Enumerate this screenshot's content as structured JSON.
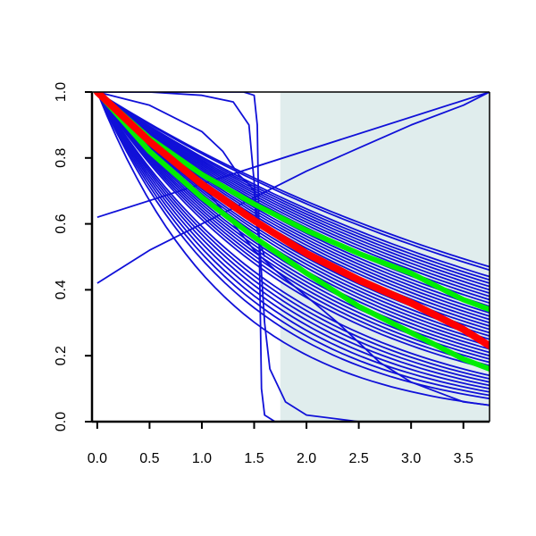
{
  "chart_data": {
    "type": "line",
    "title": "",
    "xlabel": "",
    "ylabel": "",
    "xlim": [
      -0.05,
      3.75
    ],
    "ylim": [
      0.0,
      1.0
    ],
    "x_ticks": [
      0,
      0.5,
      1,
      1.5,
      2,
      2.5,
      3,
      3.5
    ],
    "x_tick_labels": [
      "0.0",
      "0.5",
      "1.0",
      "1.5",
      "2.0",
      "2.5",
      "3.0",
      "3.5"
    ],
    "y_ticks": [
      0,
      0.2,
      0.4,
      0.6,
      0.8,
      1
    ],
    "y_tick_labels": [
      "0.0",
      "0.2",
      "0.4",
      "0.6",
      "0.8",
      "1.0"
    ],
    "grid": false,
    "legend": "none",
    "shaded_region": {
      "x_from": 1.75,
      "x_to": 3.75,
      "color": "#e0eded"
    },
    "colors": {
      "samples": "#1010d8",
      "median": "#ff0000",
      "band": "#00ee00",
      "axes": "#000000"
    },
    "exp_decay_series": {
      "count": 40,
      "x_end": 3.75,
      "final_values": [
        0.05,
        0.07,
        0.08,
        0.09,
        0.1,
        0.11,
        0.12,
        0.13,
        0.14,
        0.16,
        0.17,
        0.18,
        0.19,
        0.2,
        0.21,
        0.22,
        0.23,
        0.24,
        0.25,
        0.26,
        0.27,
        0.28,
        0.29,
        0.3,
        0.31,
        0.32,
        0.33,
        0.34,
        0.35,
        0.36,
        0.37,
        0.38,
        0.39,
        0.4,
        0.41,
        0.42,
        0.43,
        0.44,
        0.46,
        0.47
      ]
    },
    "series": [
      {
        "role": "median",
        "color": "#ff0000",
        "x": [
          0,
          0.5,
          1,
          1.5,
          2,
          2.5,
          3,
          3.5,
          3.75
        ],
        "y": [
          1.0,
          0.85,
          0.72,
          0.61,
          0.51,
          0.43,
          0.36,
          0.28,
          0.23
        ]
      },
      {
        "role": "band-upper",
        "color": "#00ee00",
        "x": [
          0,
          0.5,
          1,
          1.5,
          2,
          2.5,
          3,
          3.5,
          3.75
        ],
        "y": [
          1.0,
          0.86,
          0.75,
          0.66,
          0.58,
          0.51,
          0.45,
          0.37,
          0.34
        ]
      },
      {
        "role": "band-lower",
        "color": "#00ee00",
        "x": [
          0,
          0.5,
          1,
          1.5,
          2,
          2.5,
          3,
          3.5,
          3.75
        ],
        "y": [
          1.0,
          0.82,
          0.68,
          0.56,
          0.45,
          0.35,
          0.27,
          0.19,
          0.16
        ]
      },
      {
        "role": "sample",
        "color": "#1010d8",
        "x": [
          0,
          0.5,
          1,
          1.3,
          1.45,
          1.55,
          1.6,
          1.65,
          1.8,
          2.0,
          2.5,
          3.0,
          3.75
        ],
        "y": [
          1.0,
          1.0,
          0.99,
          0.97,
          0.9,
          0.55,
          0.3,
          0.16,
          0.06,
          0.02,
          0.0,
          0.0,
          0.0
        ]
      },
      {
        "role": "sample",
        "color": "#1010d8",
        "x": [
          0,
          0.5,
          1,
          1.2,
          1.4,
          1.5,
          1.53,
          1.55,
          1.57,
          1.6,
          1.7,
          3.75
        ],
        "y": [
          1.0,
          1.0,
          1.0,
          1.0,
          1.0,
          0.99,
          0.9,
          0.5,
          0.1,
          0.02,
          0.0,
          0.0
        ]
      },
      {
        "role": "sample",
        "color": "#1010d8",
        "x": [
          0,
          0.5,
          1,
          1.2,
          1.35,
          1.45,
          1.5,
          1.52,
          1.55,
          1.6
        ],
        "y": [
          1.0,
          0.96,
          0.88,
          0.82,
          0.75,
          0.72,
          0.7,
          0.6,
          0.55,
          0.5
        ]
      },
      {
        "role": "sample",
        "color": "#1010d8",
        "x": [
          0,
          3.75
        ],
        "y": [
          0.62,
          1.0
        ]
      },
      {
        "role": "sample",
        "color": "#1010d8",
        "x": [
          0,
          0.5,
          1,
          1.5,
          2,
          2.5,
          3,
          3.5,
          3.75
        ],
        "y": [
          0.42,
          0.52,
          0.6,
          0.68,
          0.76,
          0.83,
          0.9,
          0.96,
          1.0
        ]
      },
      {
        "role": "sample",
        "color": "#1010d8",
        "x": [
          0,
          0.5,
          1,
          1.5,
          1.7,
          2.0,
          2.3,
          2.5,
          2.7,
          3.0,
          3.5,
          3.75
        ],
        "y": [
          1.0,
          0.88,
          0.72,
          0.52,
          0.46,
          0.38,
          0.3,
          0.24,
          0.18,
          0.12,
          0.06,
          0.05
        ]
      }
    ]
  }
}
